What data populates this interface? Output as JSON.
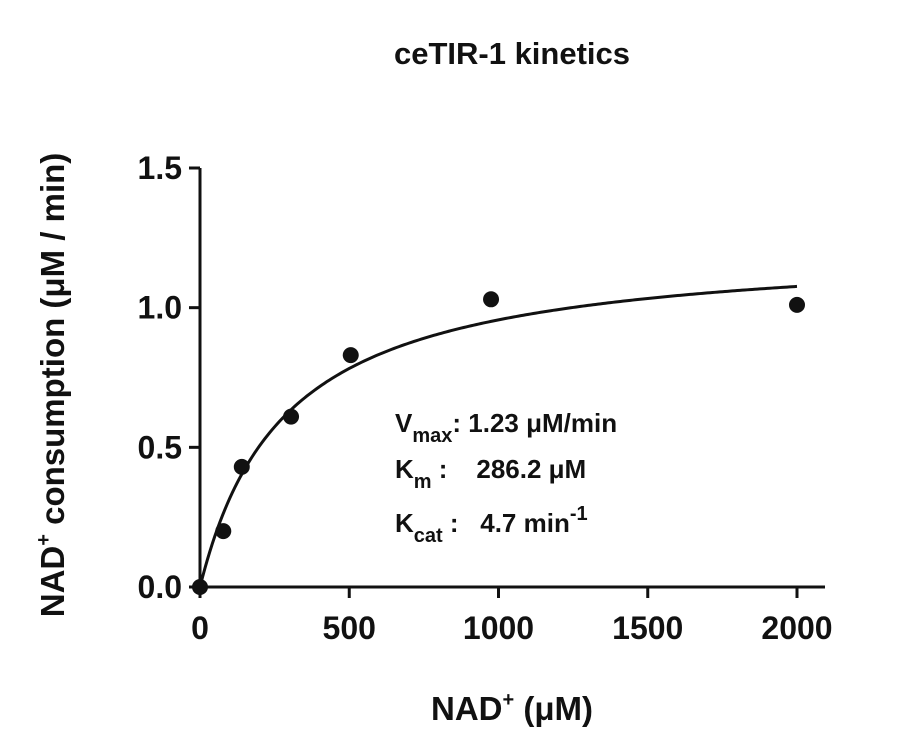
{
  "chart_data": {
    "type": "scatter",
    "title": "ceTIR-1 kinetics",
    "xlabel": {
      "pre": "NAD",
      "sup": "+",
      "post": " (μM)"
    },
    "ylabel": {
      "pre": "NAD",
      "sup": "+",
      "post": " consumption (μM / min)"
    },
    "xlim": [
      0,
      2100
    ],
    "ylim": [
      0,
      1.5
    ],
    "xticks": [
      {
        "value": 0,
        "label": "0"
      },
      {
        "value": 500,
        "label": "500"
      },
      {
        "value": 1000,
        "label": "1000"
      },
      {
        "value": 1500,
        "label": "1500"
      },
      {
        "value": 2000,
        "label": "2000"
      }
    ],
    "yticks": [
      {
        "value": 0,
        "label": "0.0"
      },
      {
        "value": 0.5,
        "label": "0.5"
      },
      {
        "value": 1.0,
        "label": "1.0"
      },
      {
        "value": 1.5,
        "label": "1.5"
      }
    ],
    "series": [
      {
        "points": [
          {
            "x": 0,
            "y": 0
          },
          {
            "x": 78,
            "y": 0.2
          },
          {
            "x": 140,
            "y": 0.43
          },
          {
            "x": 305,
            "y": 0.61
          },
          {
            "x": 505,
            "y": 0.83
          },
          {
            "x": 975,
            "y": 1.03
          },
          {
            "x": 2000,
            "y": 1.01
          }
        ]
      }
    ],
    "fit": {
      "model": "michaelis-menten",
      "vmax": 1.23,
      "km": 286.2,
      "x_end": 2000
    },
    "annotations": [
      {
        "main": "V",
        "sub": "max",
        "rest": ": 1.23 μM/min"
      },
      {
        "main": "K",
        "sub": "m",
        "rest": " :    286.2 μM"
      },
      {
        "main": "K",
        "sub": "cat",
        "rest": " :   4.7 min",
        "sup": "-1"
      }
    ],
    "grid": false,
    "legend": "none"
  }
}
